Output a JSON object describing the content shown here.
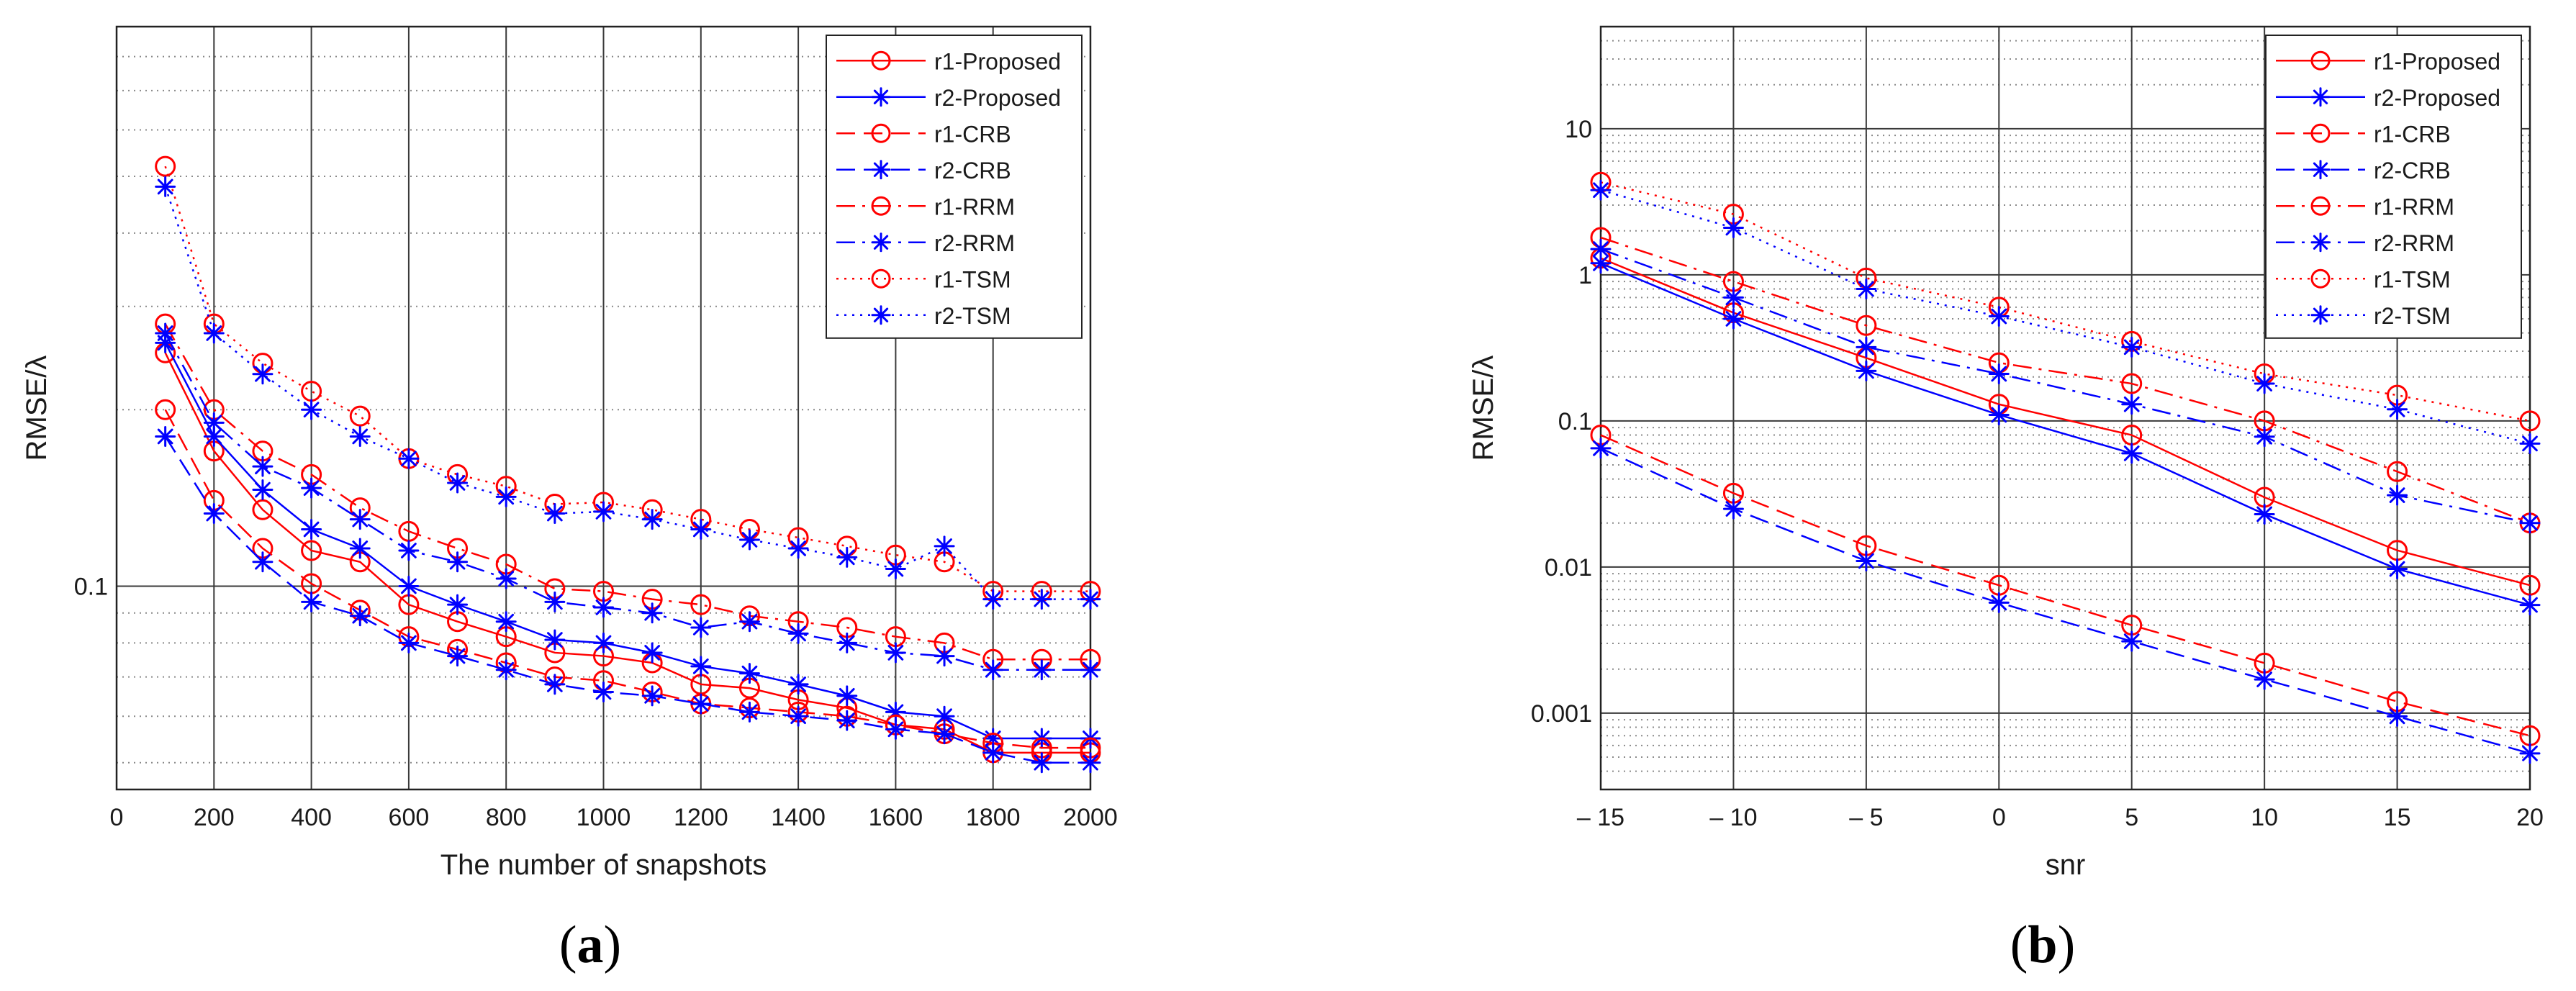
{
  "chart_data": [
    {
      "type": "line",
      "panel_label": "a",
      "xlabel": "The number of snapshots",
      "ylabel": "RMSE/λ",
      "xscale": "linear",
      "yscale": "log",
      "xlim": [
        0,
        2000
      ],
      "ylim": [
        0.045,
        0.9
      ],
      "xticks": [
        0,
        200,
        400,
        600,
        800,
        1000,
        1200,
        1400,
        1600,
        1800,
        2000
      ],
      "xtick_labels": [
        "0",
        "200",
        "400",
        "600",
        "800",
        "1000",
        "1200",
        "1400",
        "1600",
        "1800",
        "2000"
      ],
      "yticks": [
        0.1
      ],
      "ytick_labels": [
        "0.1"
      ],
      "grid": true,
      "legend_position": "top-right",
      "x": [
        100,
        200,
        300,
        400,
        500,
        600,
        700,
        800,
        900,
        1000,
        1100,
        1200,
        1300,
        1400,
        1500,
        1600,
        1700,
        1800,
        1900,
        2000
      ],
      "series": [
        {
          "name": "r1-Proposed",
          "color": "#ff0000",
          "marker": "circle",
          "linestyle": "solid",
          "values": [
            0.25,
            0.17,
            0.135,
            0.115,
            0.11,
            0.093,
            0.087,
            0.082,
            0.077,
            0.076,
            0.074,
            0.068,
            0.067,
            0.064,
            0.062,
            0.058,
            0.057,
            0.052,
            0.052,
            0.052
          ]
        },
        {
          "name": "r2-Proposed",
          "color": "#0000ff",
          "marker": "asterisk",
          "linestyle": "solid",
          "values": [
            0.26,
            0.18,
            0.146,
            0.125,
            0.116,
            0.1,
            0.093,
            0.087,
            0.081,
            0.08,
            0.077,
            0.073,
            0.071,
            0.068,
            0.065,
            0.061,
            0.06,
            0.055,
            0.055,
            0.055
          ]
        },
        {
          "name": "r1-CRB",
          "color": "#ff0000",
          "marker": "circle",
          "linestyle": "dash",
          "values": [
            0.2,
            0.14,
            0.116,
            0.101,
            0.091,
            0.082,
            0.078,
            0.074,
            0.07,
            0.069,
            0.066,
            0.063,
            0.062,
            0.061,
            0.06,
            0.058,
            0.056,
            0.054,
            0.053,
            0.053
          ]
        },
        {
          "name": "r2-CRB",
          "color": "#0000ff",
          "marker": "asterisk",
          "linestyle": "dash",
          "values": [
            0.18,
            0.133,
            0.11,
            0.094,
            0.089,
            0.08,
            0.076,
            0.072,
            0.068,
            0.066,
            0.065,
            0.063,
            0.061,
            0.06,
            0.059,
            0.057,
            0.056,
            0.052,
            0.05,
            0.05
          ]
        },
        {
          "name": "r1-RRM",
          "color": "#ff0000",
          "marker": "circle",
          "linestyle": "dashdot",
          "values": [
            0.28,
            0.2,
            0.17,
            0.155,
            0.136,
            0.124,
            0.116,
            0.109,
            0.099,
            0.098,
            0.095,
            0.093,
            0.089,
            0.087,
            0.085,
            0.082,
            0.08,
            0.075,
            0.075,
            0.075
          ]
        },
        {
          "name": "r2-RRM",
          "color": "#0000ff",
          "marker": "asterisk",
          "linestyle": "dashdot",
          "values": [
            0.27,
            0.19,
            0.16,
            0.147,
            0.13,
            0.115,
            0.11,
            0.103,
            0.094,
            0.092,
            0.09,
            0.085,
            0.087,
            0.083,
            0.08,
            0.077,
            0.076,
            0.072,
            0.072,
            0.072
          ]
        },
        {
          "name": "r1-TSM",
          "color": "#ff0000",
          "marker": "circle",
          "linestyle": "dot",
          "values": [
            0.52,
            0.28,
            0.24,
            0.215,
            0.195,
            0.165,
            0.155,
            0.148,
            0.138,
            0.139,
            0.135,
            0.13,
            0.125,
            0.121,
            0.117,
            0.113,
            0.11,
            0.098,
            0.098,
            0.098
          ]
        },
        {
          "name": "r2-TSM",
          "color": "#0000ff",
          "marker": "asterisk",
          "linestyle": "dot",
          "values": [
            0.48,
            0.27,
            0.23,
            0.2,
            0.18,
            0.165,
            0.15,
            0.142,
            0.133,
            0.134,
            0.13,
            0.125,
            0.12,
            0.116,
            0.112,
            0.107,
            0.117,
            0.095,
            0.095,
            0.095
          ]
        }
      ]
    },
    {
      "type": "line",
      "panel_label": "b",
      "xlabel": "snr",
      "ylabel": "RMSE/λ",
      "xscale": "linear",
      "yscale": "log",
      "xlim": [
        -15,
        20
      ],
      "ylim": [
        0.0003,
        50
      ],
      "xticks": [
        -15,
        -10,
        -5,
        0,
        5,
        10,
        15,
        20
      ],
      "xtick_labels": [
        "– 15",
        "– 10",
        "– 5",
        "0",
        "5",
        "10",
        "15",
        "20"
      ],
      "yticks": [
        0.001,
        0.01,
        0.1,
        1,
        10
      ],
      "ytick_labels": [
        "0.001",
        "0.01",
        "0.1",
        "1",
        "10"
      ],
      "grid": true,
      "legend_position": "top-right",
      "x": [
        -15,
        -10,
        -5,
        0,
        5,
        10,
        15,
        20
      ],
      "series": [
        {
          "name": "r1-Proposed",
          "color": "#ff0000",
          "marker": "circle",
          "linestyle": "solid",
          "values": [
            1.3,
            0.55,
            0.27,
            0.13,
            0.08,
            0.03,
            0.013,
            0.0075
          ]
        },
        {
          "name": "r2-Proposed",
          "color": "#0000ff",
          "marker": "asterisk",
          "linestyle": "solid",
          "values": [
            1.2,
            0.5,
            0.22,
            0.11,
            0.06,
            0.023,
            0.0097,
            0.0055
          ]
        },
        {
          "name": "r1-CRB",
          "color": "#ff0000",
          "marker": "circle",
          "linestyle": "dash",
          "values": [
            0.08,
            0.032,
            0.014,
            0.0075,
            0.004,
            0.0022,
            0.0012,
            0.0007
          ]
        },
        {
          "name": "r2-CRB",
          "color": "#0000ff",
          "marker": "asterisk",
          "linestyle": "dash",
          "values": [
            0.065,
            0.025,
            0.011,
            0.0057,
            0.0031,
            0.0017,
            0.00095,
            0.00053
          ]
        },
        {
          "name": "r1-RRM",
          "color": "#ff0000",
          "marker": "circle",
          "linestyle": "dashdot",
          "values": [
            1.8,
            0.9,
            0.45,
            0.25,
            0.18,
            0.1,
            0.045,
            0.02
          ]
        },
        {
          "name": "r2-RRM",
          "color": "#0000ff",
          "marker": "asterisk",
          "linestyle": "dashdot",
          "values": [
            1.5,
            0.7,
            0.32,
            0.21,
            0.13,
            0.078,
            0.031,
            0.02
          ]
        },
        {
          "name": "r1-TSM",
          "color": "#ff0000",
          "marker": "circle",
          "linestyle": "dot",
          "values": [
            4.3,
            2.6,
            0.95,
            0.6,
            0.35,
            0.21,
            0.15,
            0.1
          ]
        },
        {
          "name": "r2-TSM",
          "color": "#0000ff",
          "marker": "asterisk",
          "linestyle": "dot",
          "values": [
            3.8,
            2.1,
            0.8,
            0.52,
            0.32,
            0.18,
            0.12,
            0.07
          ]
        }
      ]
    }
  ],
  "panels": [
    {
      "label_open": "(",
      "label_letter": "a",
      "label_close": ")"
    },
    {
      "label_open": "(",
      "label_letter": "b",
      "label_close": ")"
    }
  ]
}
